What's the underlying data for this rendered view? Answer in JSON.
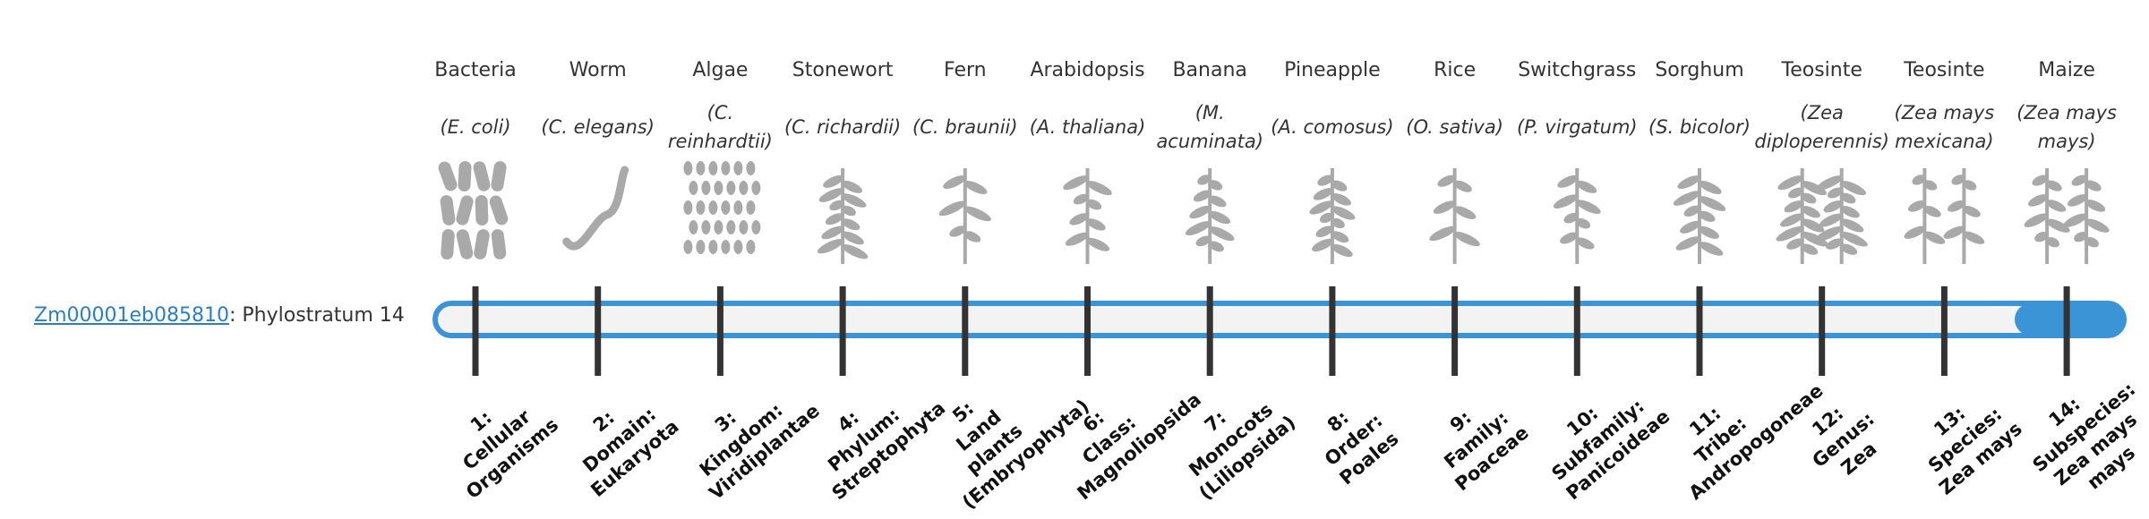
{
  "gene": {
    "id": "Zm00001eb085810",
    "text": ": Phylostratum 14"
  },
  "organisms": [
    {
      "name": "Bacteria",
      "species": "(E. coli)"
    },
    {
      "name": "Worm",
      "species": "(C. elegans)"
    },
    {
      "name": "Algae",
      "species": "(C. reinhardtii)"
    },
    {
      "name": "Stonewort",
      "species": "(C. richardii)"
    },
    {
      "name": "Fern",
      "species": "(C. braunii)"
    },
    {
      "name": "Arabidopsis",
      "species": "(A. thaliana)"
    },
    {
      "name": "Banana",
      "species": "(M. acuminata)"
    },
    {
      "name": "Pineapple",
      "species": "(A. comosus)"
    },
    {
      "name": "Rice",
      "species": "(O. sativa)"
    },
    {
      "name": "Switchgrass",
      "species": "(P. virgatum)"
    },
    {
      "name": "Sorghum",
      "species": "(S. bicolor)"
    },
    {
      "name": "Teosinte",
      "species": "(Zea diploperennis)"
    },
    {
      "name": "Teosinte",
      "species": "(Zea mays mexicana)"
    },
    {
      "name": "Maize",
      "species": "(Zea mays mays)"
    }
  ],
  "phylostrata": [
    {
      "number": "1:",
      "name": "Cellular Organisms"
    },
    {
      "number": "2:",
      "name": "Domain: Eukaryota"
    },
    {
      "number": "3:",
      "name": "Kingdom: Viridiplantae"
    },
    {
      "number": "4:",
      "name": "Phylum: Streptophyta"
    },
    {
      "number": "5:",
      "name": "Land plants (Embryophyta)"
    },
    {
      "number": "6:",
      "name": "Class: Magnoliopsida"
    },
    {
      "number": "7:",
      "name": "Monocots (Liliopsida)"
    },
    {
      "number": "8:",
      "name": "Order: Poales"
    },
    {
      "number": "9:",
      "name": "Family: Poaceae"
    },
    {
      "number": "10:",
      "name": "Subfamily: Panicoideae"
    },
    {
      "number": "11:",
      "name": "Tribe: Andropogoneae"
    },
    {
      "number": "12:",
      "name": "Genus: Zea"
    },
    {
      "number": "13:",
      "name": "Species: Zea mays"
    },
    {
      "number": "14:",
      "name": "Subspecies: Zea mays mays"
    }
  ]
}
